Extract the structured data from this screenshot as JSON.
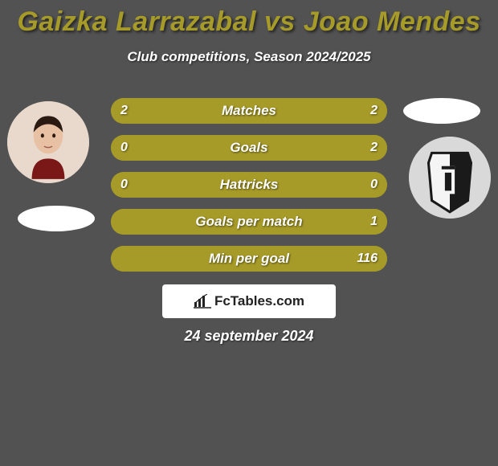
{
  "background_color": "#525252",
  "title": {
    "text": "Gaizka Larrazabal vs Joao Mendes",
    "color": "#a69a28",
    "fontsize": 34
  },
  "subtitle": "Club competitions, Season 2024/2025",
  "player_left": {
    "avatar_bg": "#e8d9cc"
  },
  "player_right": {
    "crest_bg": "#d9d9d9"
  },
  "stats": {
    "bar_bg": "#968c24",
    "bar_fill": "#a69a28",
    "rows": [
      {
        "label": "Matches",
        "left": "2",
        "right": "2",
        "left_pct": 50,
        "right_pct": 50
      },
      {
        "label": "Goals",
        "left": "0",
        "right": "2",
        "left_pct": 0,
        "right_pct": 100
      },
      {
        "label": "Hattricks",
        "left": "0",
        "right": "0",
        "left_pct": 50,
        "right_pct": 50
      },
      {
        "label": "Goals per match",
        "left": "",
        "right": "1",
        "left_pct": 0,
        "right_pct": 100
      },
      {
        "label": "Min per goal",
        "left": "",
        "right": "116",
        "left_pct": 0,
        "right_pct": 100
      }
    ]
  },
  "brand": "FcTables.com",
  "date": "24 september 2024"
}
